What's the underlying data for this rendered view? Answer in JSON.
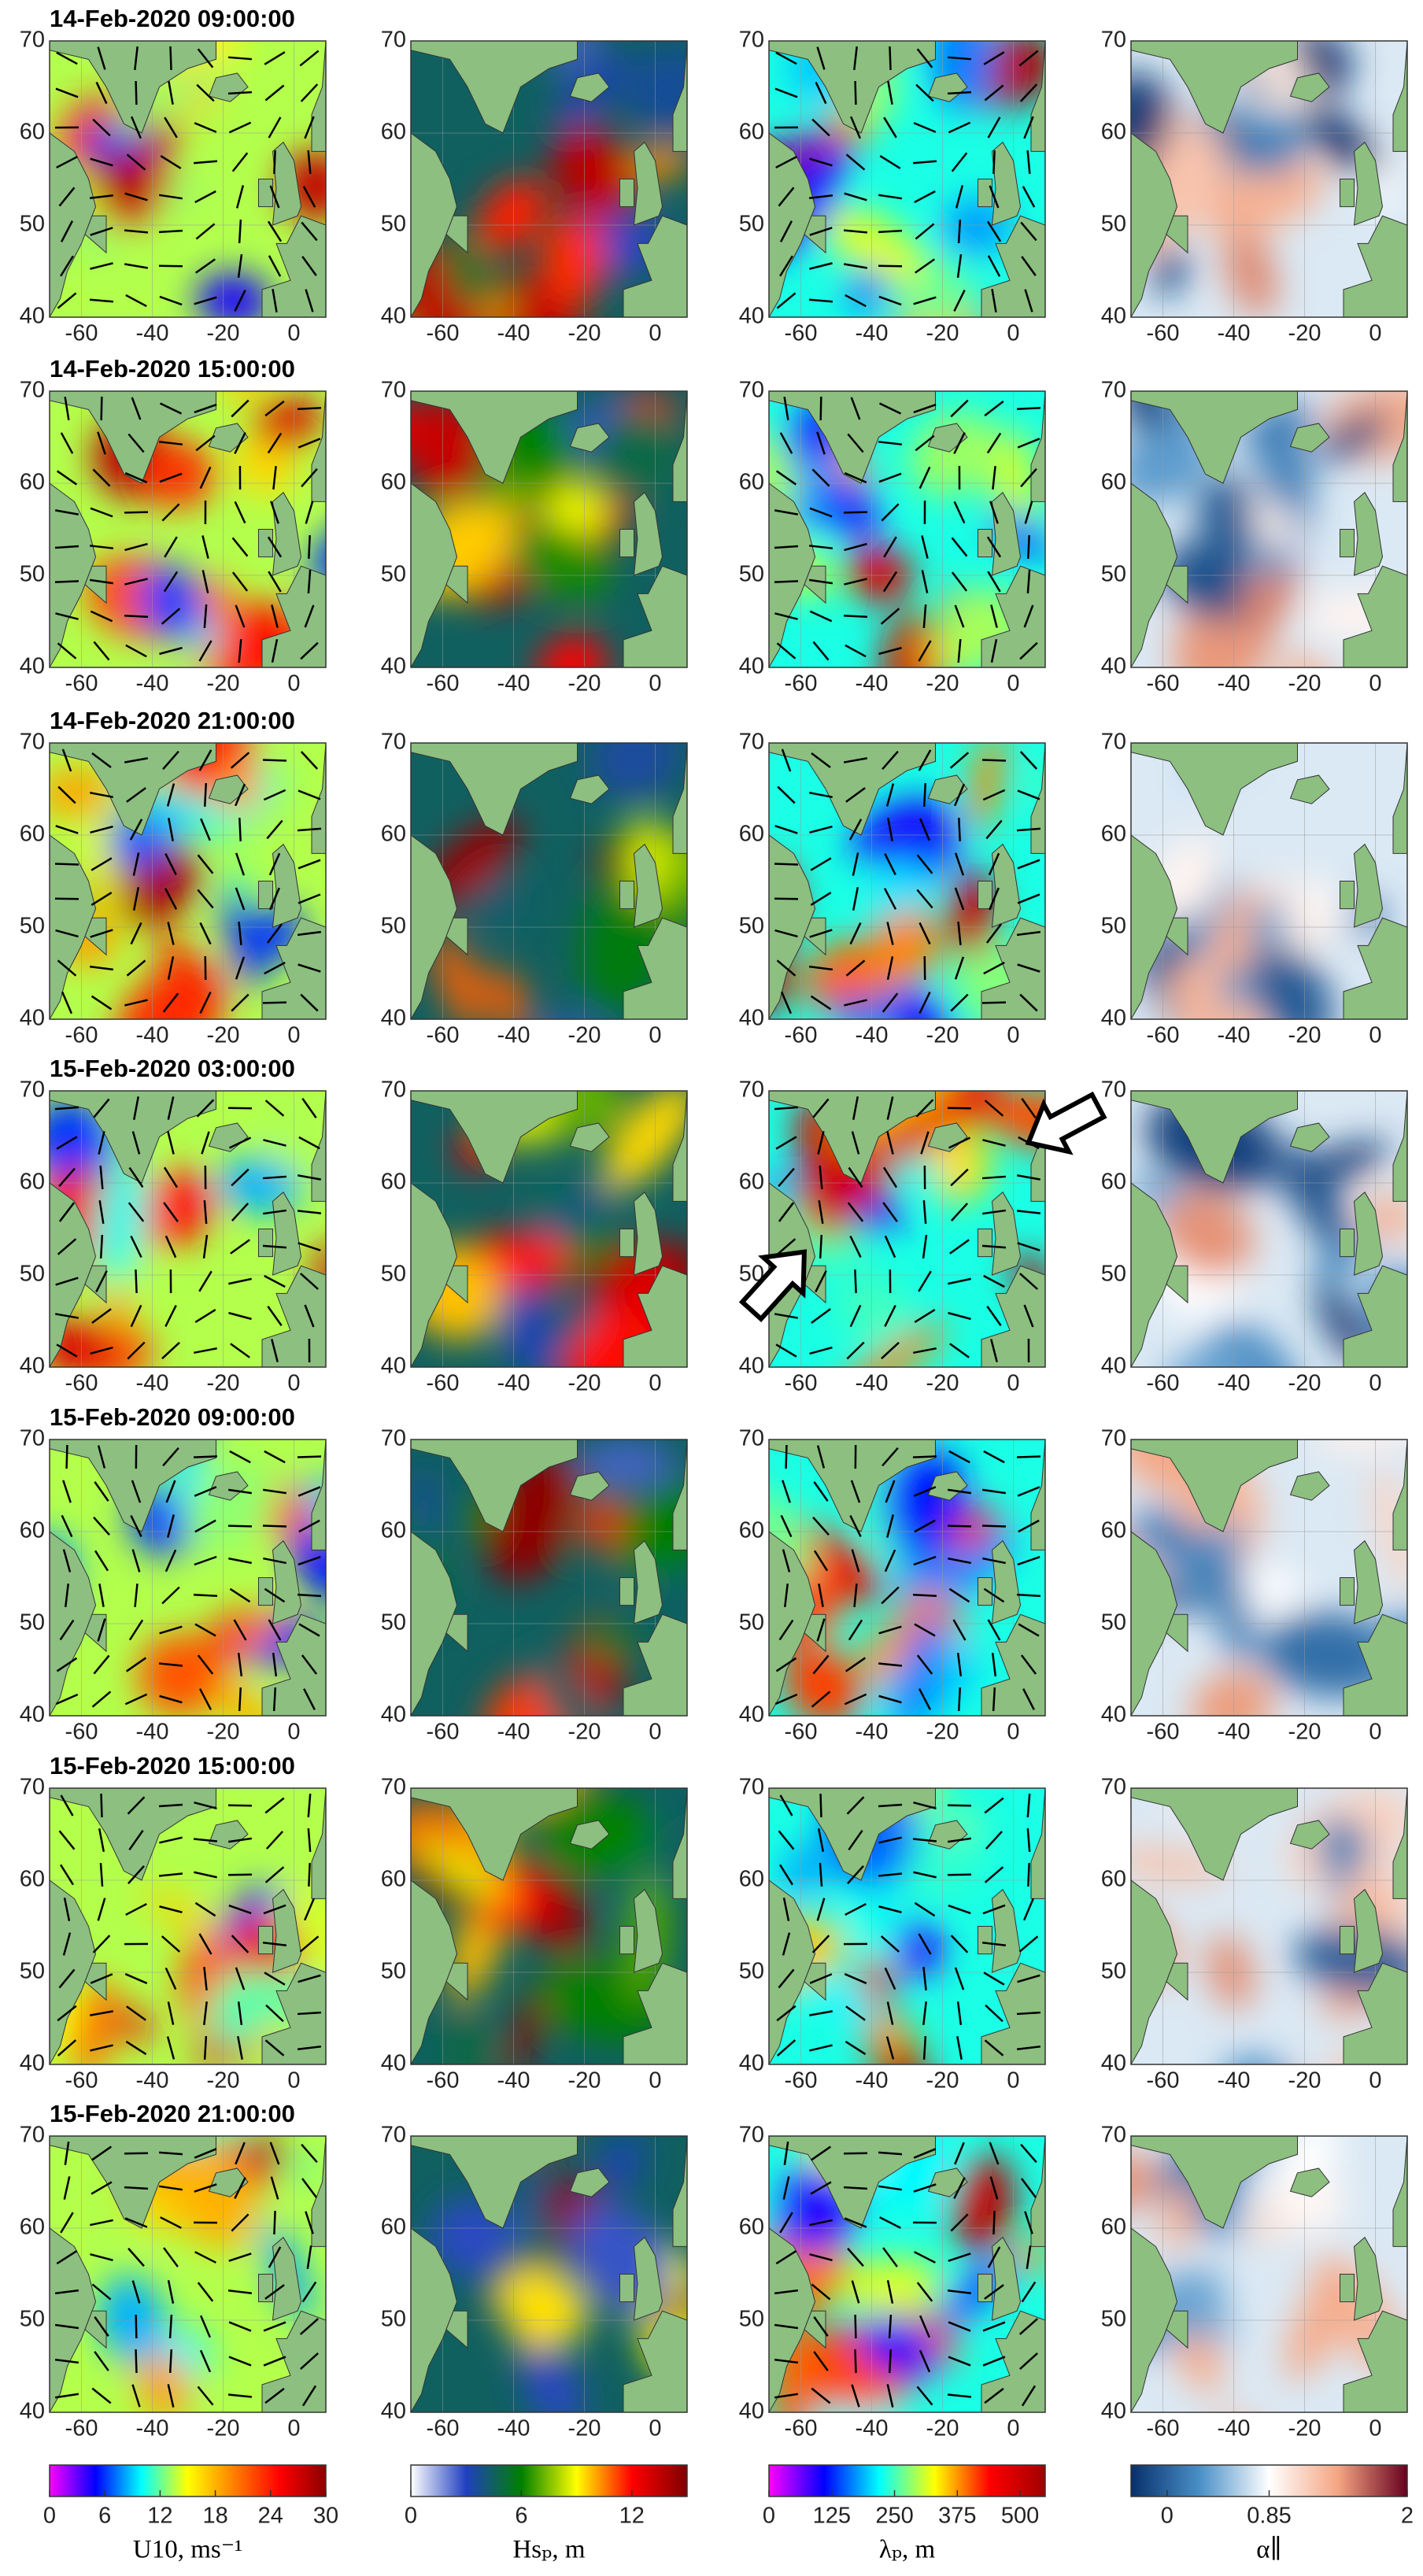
{
  "times": [
    "14-Feb-2020 09:00:00",
    "14-Feb-2020 15:00:00",
    "14-Feb-2020 21:00:00",
    "15-Feb-2020 03:00:00",
    "15-Feb-2020 09:00:00",
    "15-Feb-2020 15:00:00",
    "15-Feb-2020 21:00:00"
  ],
  "xlim": [
    -69,
    9
  ],
  "xticks": [
    -60,
    -40,
    -20,
    0
  ],
  "ylim": [
    40,
    70
  ],
  "yticks": [
    40,
    50,
    60,
    70
  ],
  "colorbars": [
    {
      "label": "U10, ms⁻¹",
      "lim": [
        0,
        30
      ],
      "ticks": [
        0,
        6,
        12,
        18,
        24,
        30
      ],
      "colors": [
        "#ff00ff",
        "#0000ff",
        "#00ffff",
        "#ffff00",
        "#ff8000",
        "#ff0000",
        "#8b0000"
      ]
    },
    {
      "label": "Hsₚ, m",
      "lim": [
        0,
        15
      ],
      "ticks": [
        0,
        6,
        12
      ],
      "colors": [
        "#ffffff",
        "#2040c0",
        "#008000",
        "#ffff00",
        "#ff0000",
        "#800000"
      ]
    },
    {
      "label": "λₚ, m",
      "lim": [
        0,
        550
      ],
      "ticks": [
        0,
        125,
        250,
        375,
        500
      ],
      "colors": [
        "#ff00ff",
        "#0000ff",
        "#00ffff",
        "#ffff00",
        "#ff0000",
        "#a00000"
      ]
    },
    {
      "label": "α∥",
      "lim": [
        -0.3,
        2
      ],
      "ticks": [
        0,
        0.85,
        2
      ],
      "colors": [
        "#08306b",
        "#4a90c8",
        "#ffffff",
        "#f4a582",
        "#67001f"
      ]
    }
  ]
}
